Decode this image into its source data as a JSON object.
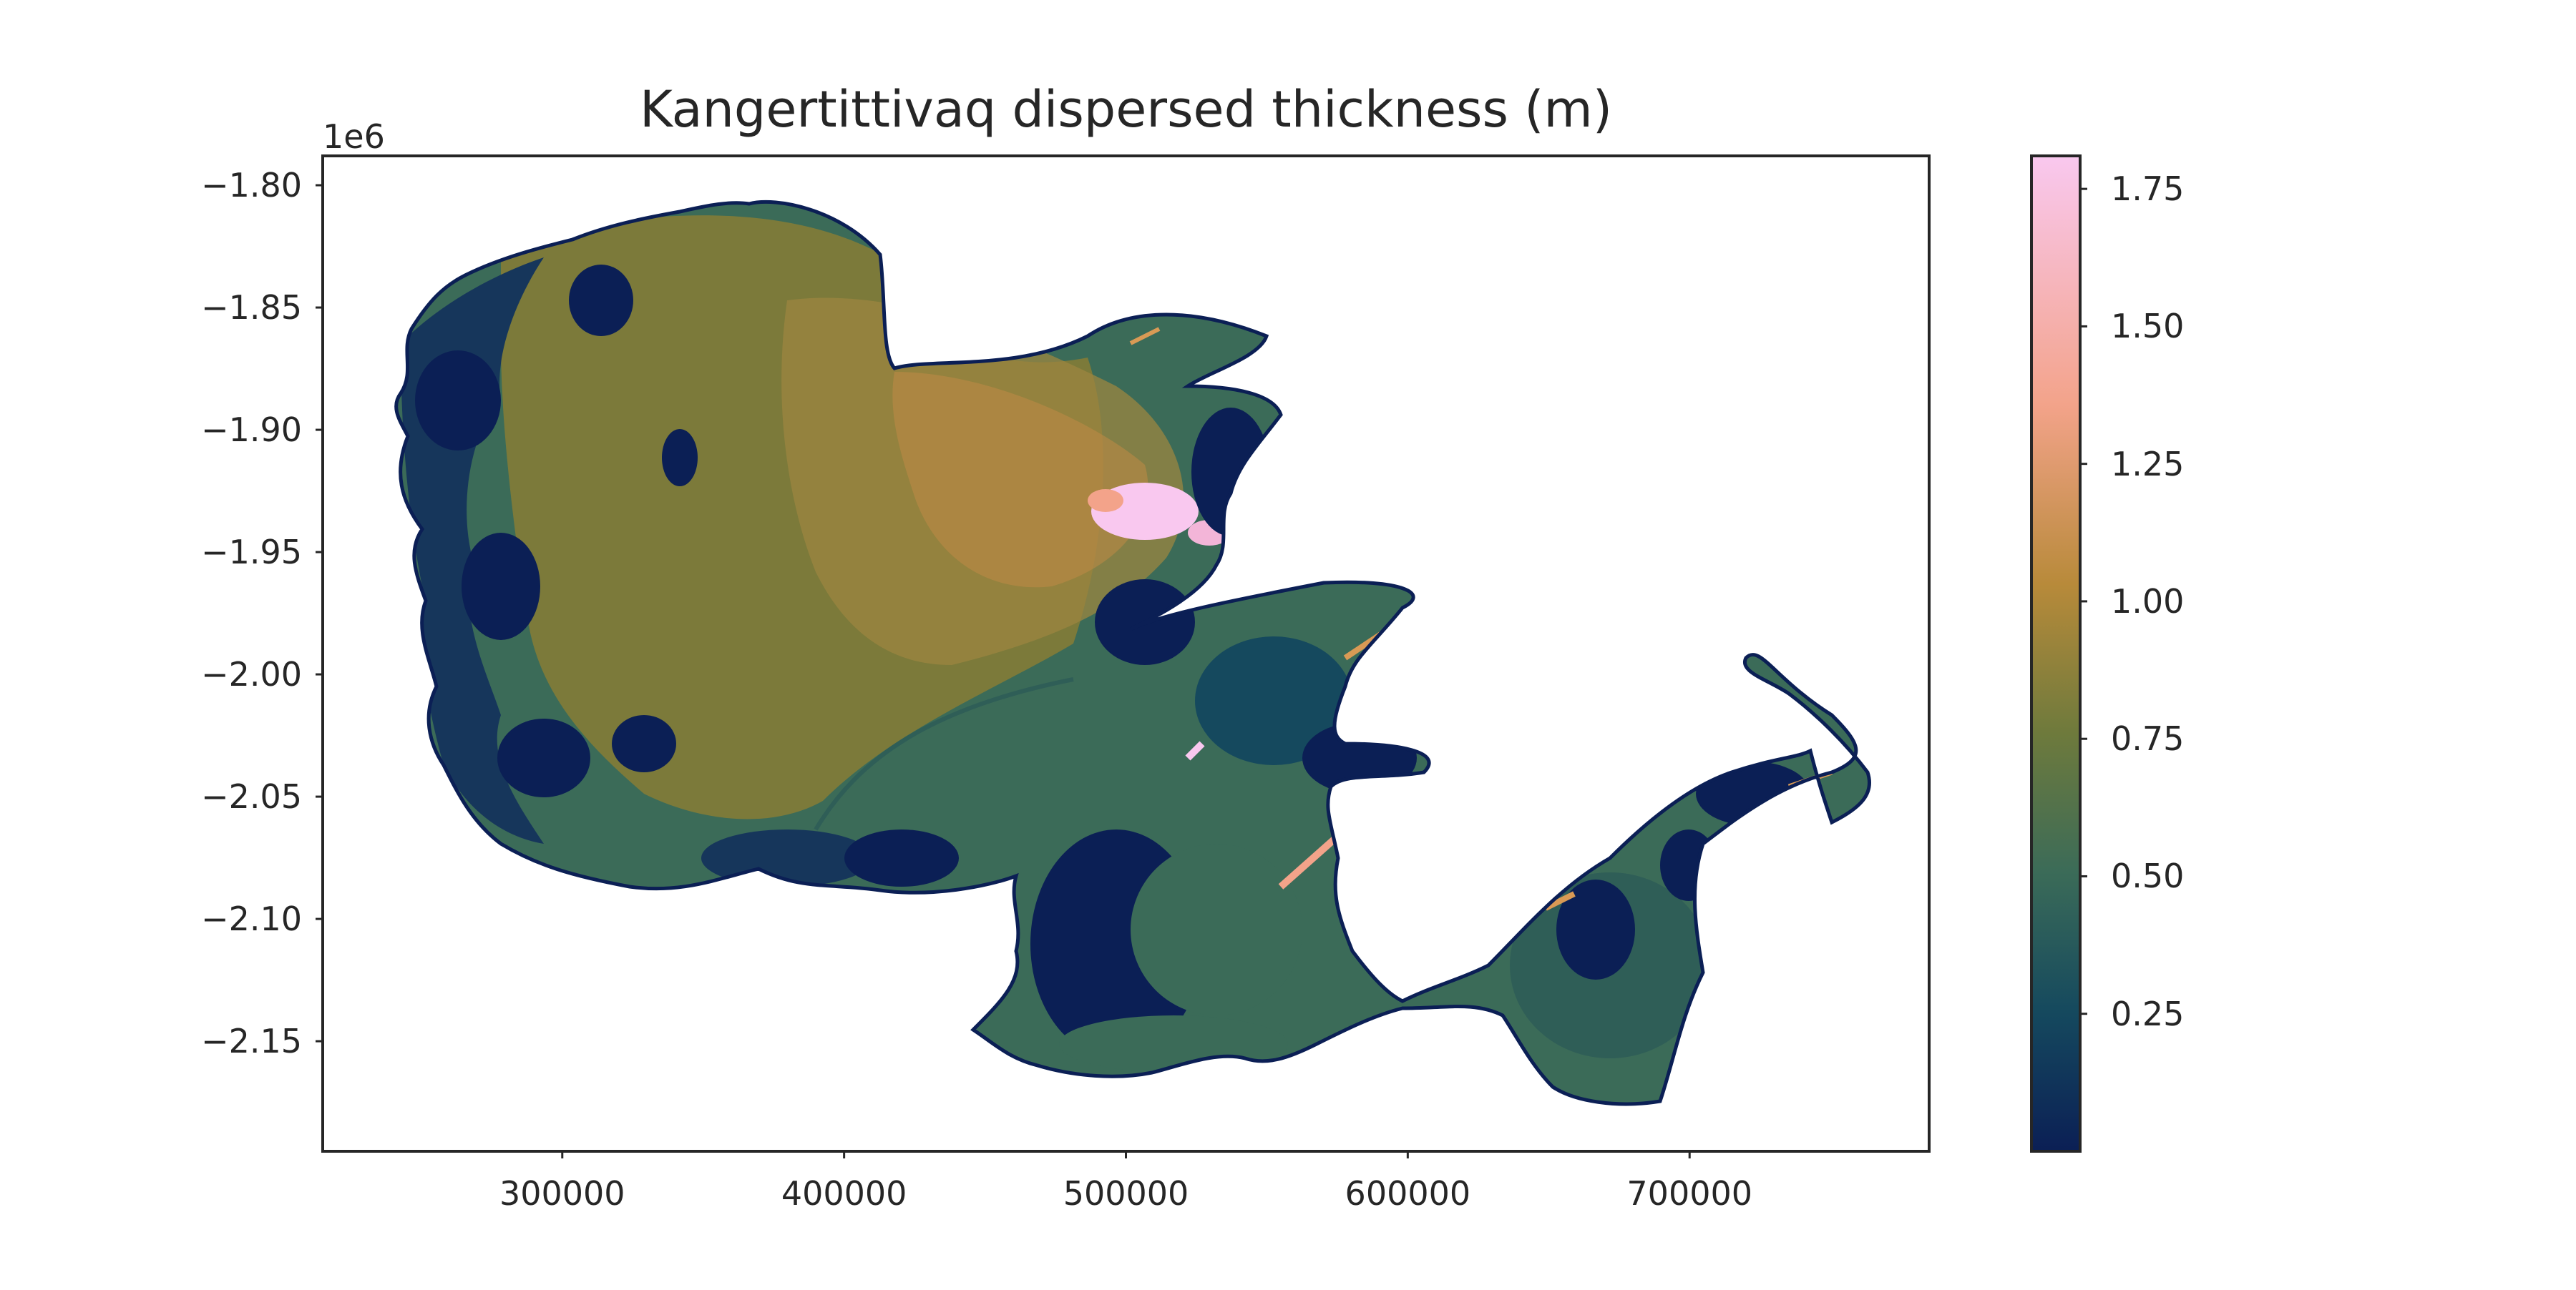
{
  "chart_data": {
    "type": "heatmap",
    "title": "Kangertittivaq dispersed thickness (m)",
    "xlabel": "",
    "ylabel": "",
    "x_ticks": [
      300000,
      400000,
      500000,
      600000,
      700000
    ],
    "x_tick_labels": [
      "300000",
      "400000",
      "500000",
      "600000",
      "700000"
    ],
    "y_ticks": [
      -1800000,
      -1850000,
      -1900000,
      -1950000,
      -2000000,
      -2050000,
      -2100000,
      -2150000
    ],
    "y_tick_labels": [
      "−1.80",
      "−1.85",
      "−1.90",
      "−1.95",
      "−2.00",
      "−2.05",
      "−2.10",
      "−2.15"
    ],
    "y_offset_label": "1e6",
    "xlim": [
      215000,
      785000
    ],
    "ylim": [
      -2195000,
      -1788000
    ],
    "colorbar": {
      "ticks": [
        0.25,
        0.5,
        0.75,
        1.0,
        1.25,
        1.5,
        1.75
      ],
      "tick_labels": [
        "0.25",
        "0.50",
        "0.75",
        "1.00",
        "1.25",
        "1.50",
        "1.75"
      ],
      "range": [
        0.0,
        1.81
      ],
      "colormap": "cubehelix-like",
      "colors": [
        "#0b1f55",
        "#15495e",
        "#3b6b58",
        "#6e7a3c",
        "#b88a3a",
        "#f3a38a",
        "#f9c8ef"
      ]
    },
    "grid": false,
    "legend": "none"
  }
}
